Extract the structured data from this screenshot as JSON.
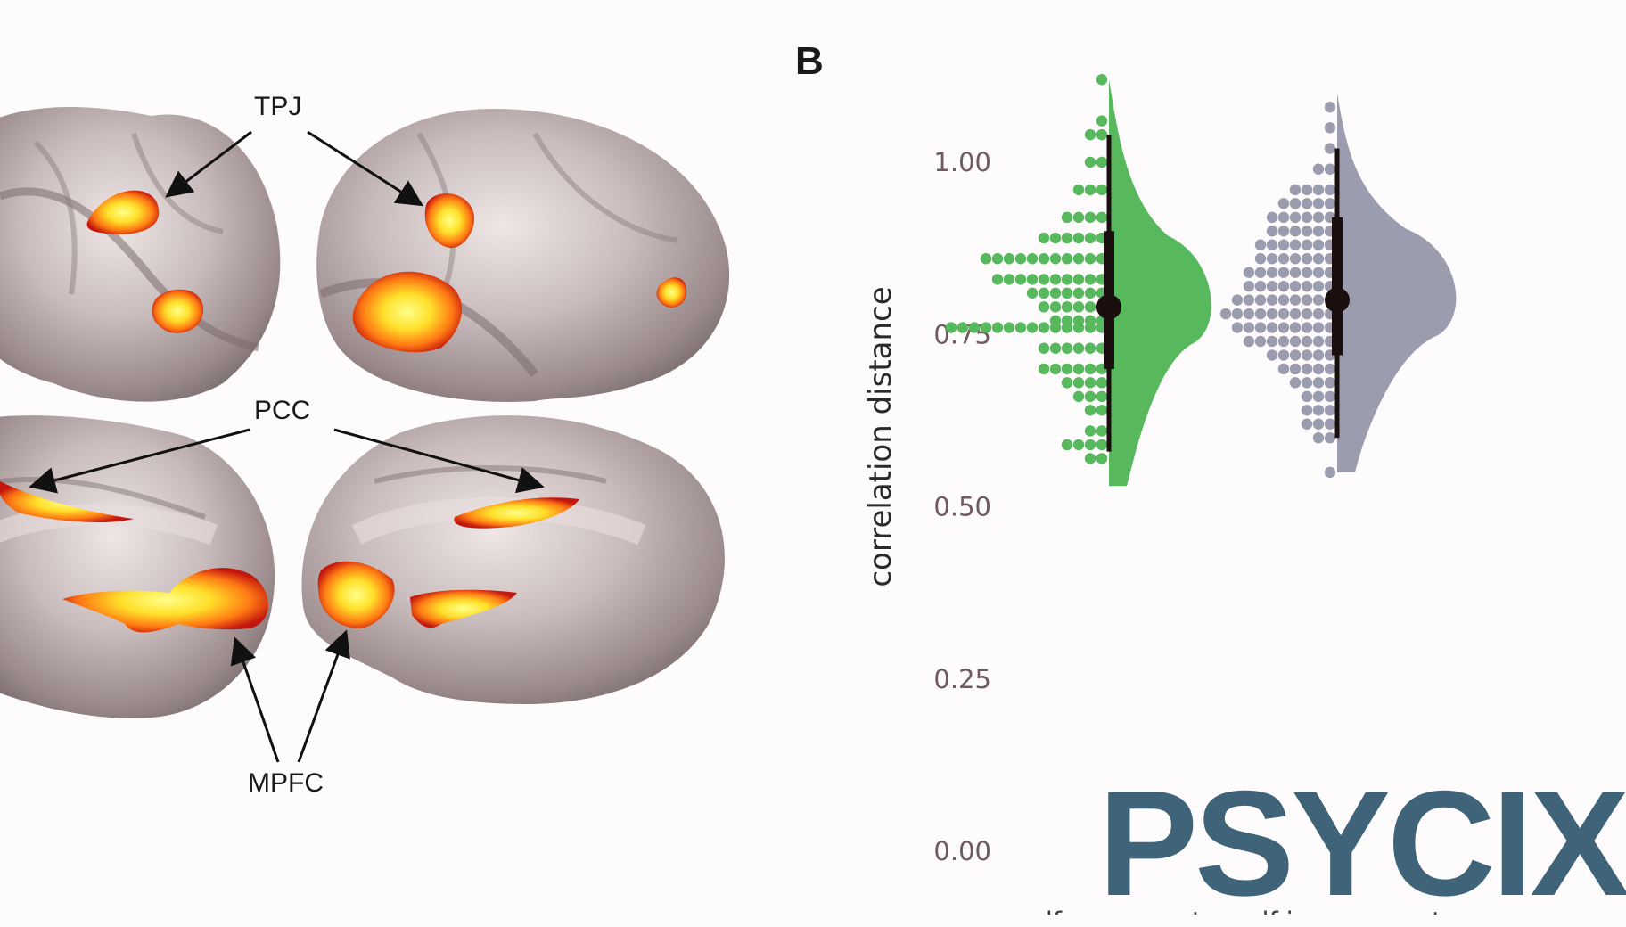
{
  "panel_label": "B",
  "brain_regions": {
    "tpj": "TPJ",
    "pcc": "PCC",
    "mpfc": "MPFC"
  },
  "logo_text": "PSYCIX",
  "colors": {
    "congruent": "#57b85e",
    "incongruent": "#9b9cae",
    "summary": "#1a0e0e",
    "activation_hot": "#ffe93a",
    "activation_warm": "#ff7a1a",
    "activation_edge": "#b8160f",
    "brain_surface": "#a39394",
    "logo": "#3f6378"
  },
  "chart_data": {
    "type": "raincloud",
    "ylabel": "correlation distance",
    "ylim": [
      0,
      1.12
    ],
    "yticks": [
      "0.00",
      "0.25",
      "0.50",
      "0.75",
      "1.00"
    ],
    "ytick_values": [
      0,
      0.25,
      0.5,
      0.75,
      1.0
    ],
    "categories": [
      "self-congruent",
      "self-incongruent"
    ],
    "series": [
      {
        "name": "self-congruent",
        "summary": {
          "median": 0.79,
          "q1": 0.7,
          "q3": 0.9,
          "lo": 0.58,
          "hi": 1.04
        },
        "dot_rows": [
          {
            "y": 1.12,
            "n": 1
          },
          {
            "y": 1.06,
            "n": 1
          },
          {
            "y": 1.04,
            "n": 2
          },
          {
            "y": 1.0,
            "n": 2
          },
          {
            "y": 0.96,
            "n": 3
          },
          {
            "y": 0.92,
            "n": 4
          },
          {
            "y": 0.89,
            "n": 6
          },
          {
            "y": 0.86,
            "n": 11
          },
          {
            "y": 0.83,
            "n": 10
          },
          {
            "y": 0.81,
            "n": 7
          },
          {
            "y": 0.79,
            "n": 6
          },
          {
            "y": 0.77,
            "n": 5
          },
          {
            "y": 0.76,
            "n": 14
          },
          {
            "y": 0.73,
            "n": 6
          },
          {
            "y": 0.7,
            "n": 6
          },
          {
            "y": 0.68,
            "n": 4
          },
          {
            "y": 0.66,
            "n": 3
          },
          {
            "y": 0.64,
            "n": 2
          },
          {
            "y": 0.61,
            "n": 2
          },
          {
            "y": 0.59,
            "n": 4
          },
          {
            "y": 0.57,
            "n": 2
          }
        ]
      },
      {
        "name": "self-incongruent",
        "summary": {
          "median": 0.8,
          "q1": 0.72,
          "q3": 0.92,
          "lo": 0.6,
          "hi": 1.02
        },
        "dot_rows": [
          {
            "y": 1.08,
            "n": 1
          },
          {
            "y": 1.05,
            "n": 1
          },
          {
            "y": 1.02,
            "n": 1
          },
          {
            "y": 0.99,
            "n": 2
          },
          {
            "y": 0.96,
            "n": 4
          },
          {
            "y": 0.94,
            "n": 5
          },
          {
            "y": 0.92,
            "n": 6
          },
          {
            "y": 0.9,
            "n": 6
          },
          {
            "y": 0.88,
            "n": 7
          },
          {
            "y": 0.86,
            "n": 7
          },
          {
            "y": 0.84,
            "n": 8
          },
          {
            "y": 0.82,
            "n": 8
          },
          {
            "y": 0.8,
            "n": 9
          },
          {
            "y": 0.78,
            "n": 10
          },
          {
            "y": 0.76,
            "n": 9
          },
          {
            "y": 0.74,
            "n": 8
          },
          {
            "y": 0.72,
            "n": 6
          },
          {
            "y": 0.7,
            "n": 5
          },
          {
            "y": 0.68,
            "n": 4
          },
          {
            "y": 0.66,
            "n": 3
          },
          {
            "y": 0.64,
            "n": 3
          },
          {
            "y": 0.62,
            "n": 3
          },
          {
            "y": 0.6,
            "n": 2
          },
          {
            "y": 0.55,
            "n": 1
          }
        ]
      }
    ]
  }
}
